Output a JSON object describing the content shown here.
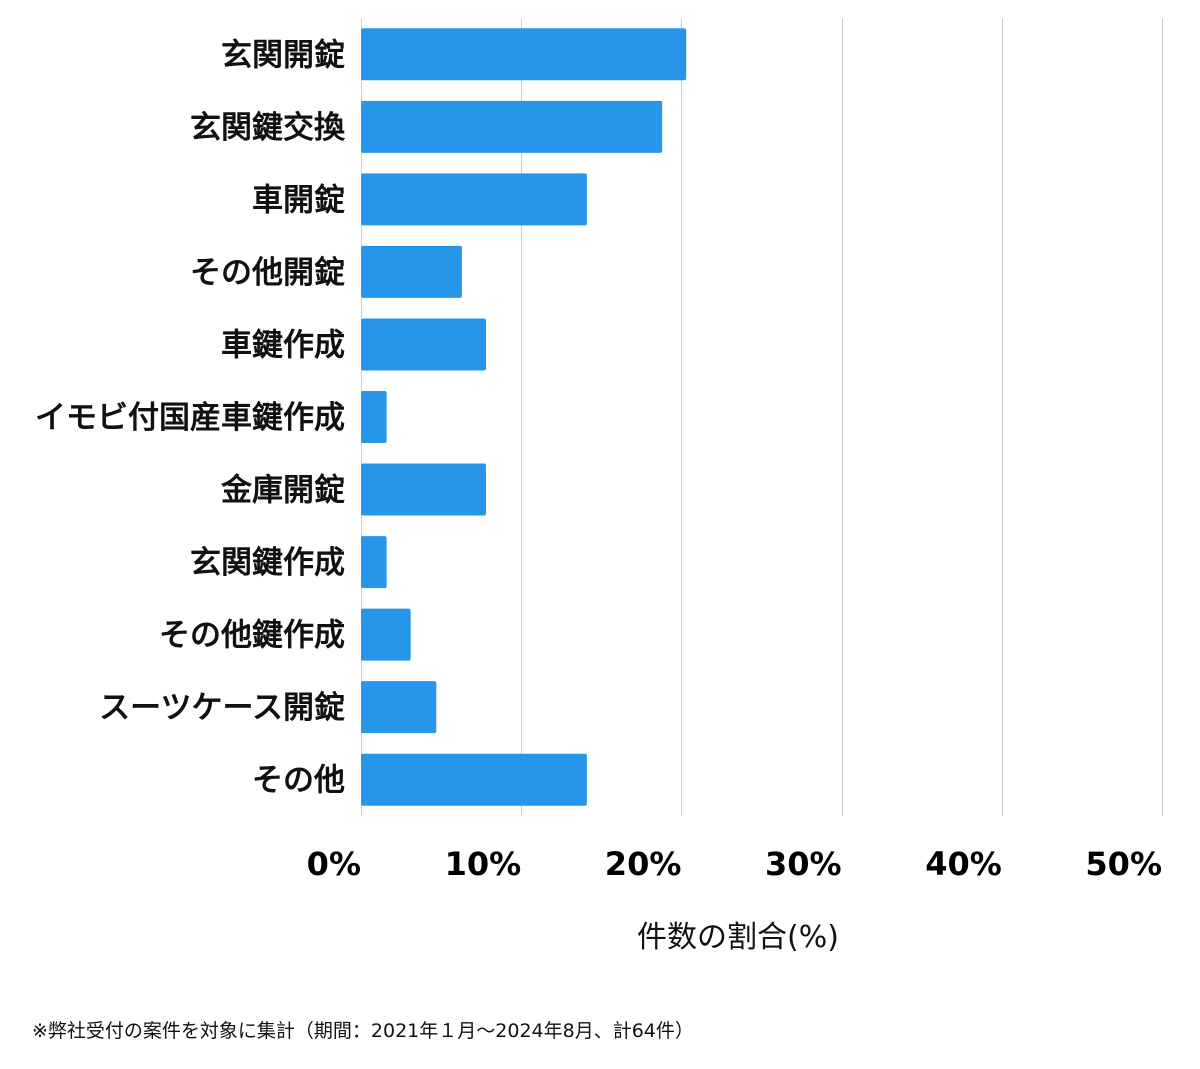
{
  "chart_data": {
    "type": "bar",
    "orientation": "horizontal",
    "categories": [
      "玄関開錠",
      "玄関鍵交換",
      "車開錠",
      "その他開錠",
      "車鍵作成",
      "イモビ付国産車鍵作成",
      "金庫開錠",
      "玄関鍵作成",
      "その他鍵作成",
      "スーツケース開錠",
      "その他"
    ],
    "values": [
      20.3,
      18.8,
      14.1,
      6.3,
      7.8,
      1.6,
      7.8,
      1.6,
      3.1,
      4.7,
      14.1
    ],
    "xlim": [
      0,
      50
    ],
    "ticks": [
      0,
      10,
      20,
      30,
      40,
      50
    ],
    "tick_labels": [
      "0%",
      "10%",
      "20%",
      "30%",
      "40%",
      "50%"
    ],
    "xlabel": "件数の割合(%)",
    "ylabel": "",
    "grid": true,
    "bar_color": "#2796e8"
  },
  "footnote": "※弊社受付の案件を対象に集計（期間：2021年１月～2024年8月、計64件）"
}
